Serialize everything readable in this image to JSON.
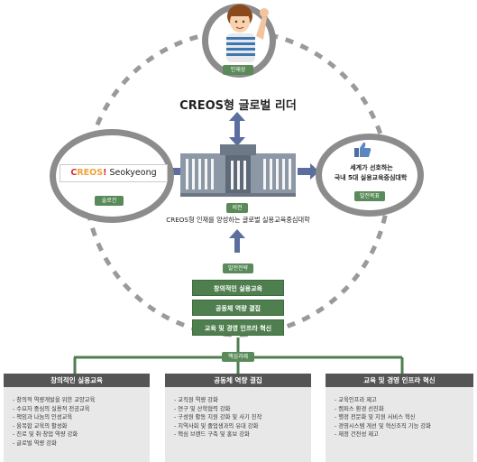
{
  "top_node": {
    "tag": "인재상",
    "title": "CREOS형 글로벌 리더"
  },
  "left_node": {
    "logo_prefix": "C",
    "logo_mid": "REOS",
    "logo_suffix": "!",
    "logo_name": "Seokyeong",
    "tag": "슬로건"
  },
  "right_node": {
    "line1": "세계가 선호하는",
    "line2": "국내 5대 실용교육중심대학",
    "tag": "발전목표"
  },
  "center": {
    "tag": "비전",
    "vision": "CREOS형 인재를 양성하는 글로벌 실용교육중심대학"
  },
  "strategy": {
    "tag": "발전전략",
    "items": [
      "창의적인 실용교육",
      "공동체 역량 결집",
      "교육 및 경영 인프라 혁신"
    ]
  },
  "tasks_tag": "핵심과제",
  "panels": [
    {
      "title": "창의적인 실용교육",
      "items": [
        "창의적 역량개발을 위한 교양교육",
        "수요자 중심의 실용적 전공교육",
        "책임과 나눔의 인성교육",
        "융복합 교육의 활성화",
        "진로 및 취·창업 역량 강화",
        "글로벌 역량 강화"
      ]
    },
    {
      "title": "공동체 역량 결집",
      "items": [
        "교직원 역량 강화",
        "연구 및 산학협력 강화",
        "구성원 활동 지원 강화 및 사기 진작",
        "지역사회 및 졸업생과의 유대 강화",
        "핵심 브랜드 구축 및 홍보 강화"
      ]
    },
    {
      "title": "교육 및 경영 인프라 혁신",
      "items": [
        "교육인프라 제고",
        "캠퍼스 환경 선진화",
        "행정 전문화 및 지원 서비스 혁신",
        "경영시스템 개선 및 혁신조직 기능 강화",
        "재정 건전성 제고"
      ]
    }
  ],
  "colors": {
    "green": "#4f7f4f",
    "arrow": "#5b6e9e",
    "ring": "#8c8c8c",
    "dashed": "#9a9a9a",
    "logo_red": "#d32f2f",
    "logo_orange": "#f0a23a"
  },
  "icons": {
    "person": "person-illustration-icon",
    "building": "university-building-icon",
    "thumb": "thumbs-up-icon"
  }
}
